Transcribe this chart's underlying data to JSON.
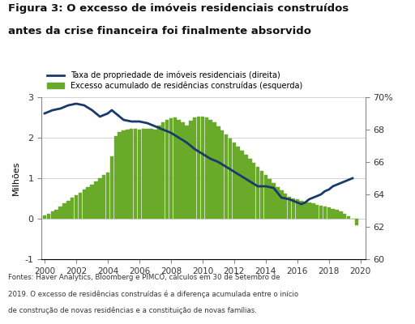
{
  "title_line1": "Figura 3: O excesso de imóveis residenciais construídos",
  "title_line2": "antes da crise financeira foi finalmente absorvido",
  "legend_line": "Taxa de propriedade de imóveis residenciais (direita)",
  "legend_bar": "Excesso acumulado de residências construídas (esquerda)",
  "ylabel_left": "Milhões",
  "footnote1": "Fontes: Haver Analytics, Bloomberg e PIMCO, cálculos em 30 de Setembro de",
  "footnote2": "2019. O excesso de residências construídas é a diferença acumulada entre o início",
  "footnote3": "de construção de novas residências e a constituição de novas famílias.",
  "bar_color": "#6aaa2a",
  "line_color": "#1a3a6b",
  "background_color": "#ffffff",
  "ylim_left": [
    -1,
    3
  ],
  "ylim_right": [
    60,
    70
  ],
  "yticks_left": [
    -1,
    0,
    1,
    2,
    3
  ],
  "yticks_right": [
    60,
    62,
    64,
    66,
    68,
    70
  ],
  "ytick_labels_right": [
    "60",
    "62",
    "64",
    "66",
    "68",
    "70%"
  ],
  "xticks": [
    2000,
    2002,
    2004,
    2006,
    2008,
    2010,
    2012,
    2014,
    2016,
    2018,
    2020
  ],
  "bar_years": [
    2000.0,
    2000.25,
    2000.5,
    2000.75,
    2001.0,
    2001.25,
    2001.5,
    2001.75,
    2002.0,
    2002.25,
    2002.5,
    2002.75,
    2003.0,
    2003.25,
    2003.5,
    2003.75,
    2004.0,
    2004.25,
    2004.5,
    2004.75,
    2005.0,
    2005.25,
    2005.5,
    2005.75,
    2006.0,
    2006.25,
    2006.5,
    2006.75,
    2007.0,
    2007.25,
    2007.5,
    2007.75,
    2008.0,
    2008.25,
    2008.5,
    2008.75,
    2009.0,
    2009.25,
    2009.5,
    2009.75,
    2010.0,
    2010.25,
    2010.5,
    2010.75,
    2011.0,
    2011.25,
    2011.5,
    2011.75,
    2012.0,
    2012.25,
    2012.5,
    2012.75,
    2013.0,
    2013.25,
    2013.5,
    2013.75,
    2014.0,
    2014.25,
    2014.5,
    2014.75,
    2015.0,
    2015.25,
    2015.5,
    2015.75,
    2016.0,
    2016.25,
    2016.5,
    2016.75,
    2017.0,
    2017.25,
    2017.5,
    2017.75,
    2018.0,
    2018.25,
    2018.5,
    2018.75,
    2019.0,
    2019.25,
    2019.5,
    2019.75
  ],
  "bar_values": [
    0.08,
    0.13,
    0.18,
    0.23,
    0.3,
    0.38,
    0.45,
    0.52,
    0.58,
    0.65,
    0.72,
    0.78,
    0.85,
    0.92,
    1.0,
    1.08,
    1.15,
    1.55,
    2.05,
    2.15,
    2.18,
    2.2,
    2.22,
    2.22,
    2.2,
    2.22,
    2.23,
    2.22,
    2.21,
    2.3,
    2.38,
    2.45,
    2.48,
    2.5,
    2.45,
    2.38,
    2.3,
    2.42,
    2.5,
    2.52,
    2.52,
    2.5,
    2.45,
    2.38,
    2.28,
    2.18,
    2.08,
    1.98,
    1.88,
    1.78,
    1.68,
    1.58,
    1.48,
    1.38,
    1.28,
    1.18,
    1.08,
    0.98,
    0.88,
    0.78,
    0.7,
    0.62,
    0.55,
    0.5,
    0.48,
    0.45,
    0.42,
    0.4,
    0.38,
    0.35,
    0.32,
    0.3,
    0.28,
    0.25,
    0.22,
    0.18,
    0.12,
    0.06,
    0.01,
    -0.15
  ],
  "line_years": [
    2000.0,
    2000.5,
    2001.0,
    2001.5,
    2002.0,
    2002.5,
    2003.0,
    2003.5,
    2004.0,
    2004.25,
    2004.5,
    2004.75,
    2005.0,
    2005.5,
    2006.0,
    2006.5,
    2007.0,
    2007.5,
    2008.0,
    2008.5,
    2009.0,
    2009.5,
    2010.0,
    2010.5,
    2011.0,
    2011.5,
    2012.0,
    2012.5,
    2013.0,
    2013.5,
    2014.0,
    2014.5,
    2015.0,
    2015.5,
    2016.0,
    2016.25,
    2016.5,
    2016.75,
    2017.0,
    2017.25,
    2017.5,
    2017.75,
    2018.0,
    2018.25,
    2018.5,
    2018.75,
    2019.0,
    2019.25,
    2019.5
  ],
  "line_values": [
    69.0,
    69.2,
    69.3,
    69.5,
    69.6,
    69.5,
    69.2,
    68.8,
    69.0,
    69.2,
    69.0,
    68.8,
    68.6,
    68.5,
    68.5,
    68.4,
    68.2,
    68.0,
    67.8,
    67.5,
    67.2,
    66.8,
    66.5,
    66.2,
    66.0,
    65.7,
    65.4,
    65.1,
    64.8,
    64.5,
    64.5,
    64.4,
    63.8,
    63.7,
    63.5,
    63.4,
    63.5,
    63.7,
    63.8,
    63.9,
    64.0,
    64.2,
    64.3,
    64.5,
    64.6,
    64.7,
    64.8,
    64.9,
    65.0
  ]
}
